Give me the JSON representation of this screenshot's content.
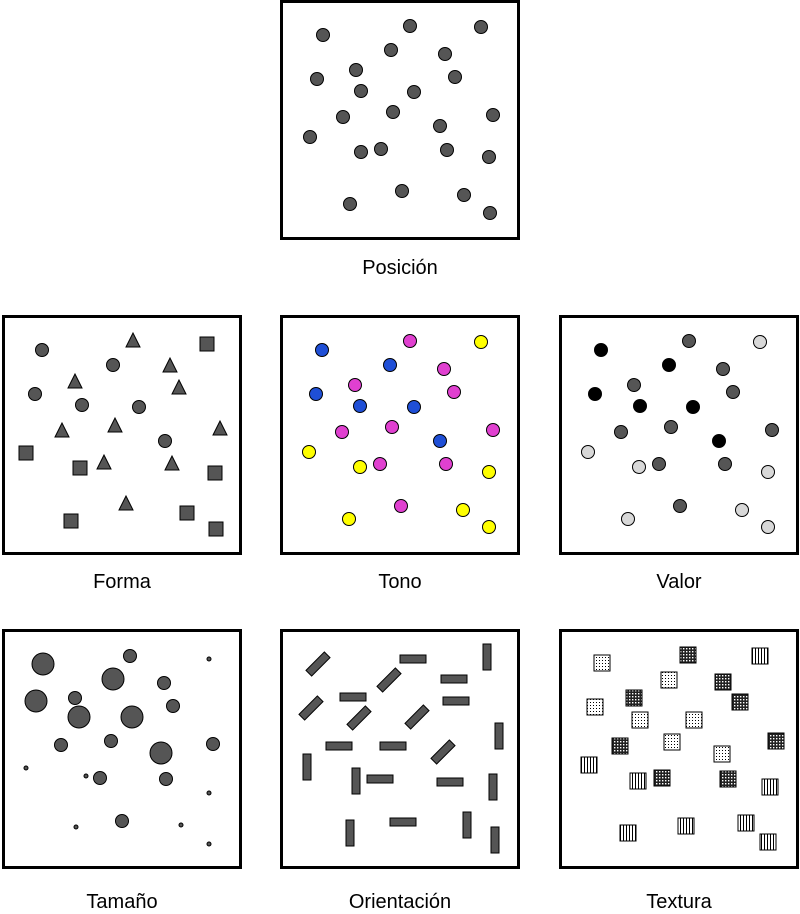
{
  "colors": {
    "mark": "#555555",
    "stroke": "#000000",
    "blue": "#1f4fd6",
    "magenta": "#e040d0",
    "yellow": "#ffff00",
    "black": "#000000",
    "light": "#d8d8d8"
  },
  "panels": [
    {
      "key": "posicion",
      "label": "Posición"
    },
    {
      "key": "forma",
      "label": "Forma"
    },
    {
      "key": "tono",
      "label": "Tono"
    },
    {
      "key": "valor",
      "label": "Valor"
    },
    {
      "key": "tamano",
      "label": "Tamaño"
    },
    {
      "key": "orientacion",
      "label": "Orientación"
    },
    {
      "key": "textura",
      "label": "Textura"
    }
  ]
}
